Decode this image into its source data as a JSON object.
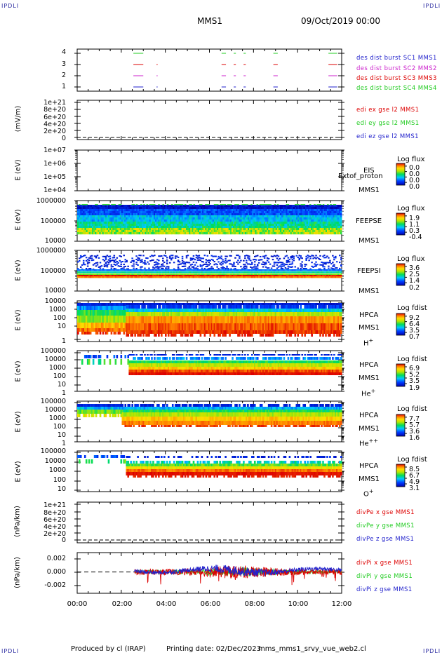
{
  "header": {
    "corner_label": "IPDLI",
    "spacecraft": "MMS1",
    "datetime": "09/Oct/2019 00:00"
  },
  "footer": {
    "produced_by": "Produced by cl (IRAP)",
    "printing_date": "Printing date: 02/Dec/2023",
    "script": "mms_mms1_srvy_vue_web2.cl"
  },
  "x_axis": {
    "ticks": [
      "00:00",
      "02:00",
      "04:00",
      "06:00",
      "08:00",
      "10:00",
      "12:00"
    ]
  },
  "colors": {
    "black": "#000000",
    "red": "#dd0000",
    "green": "#22cc22",
    "magenta": "#cc22cc",
    "blue": "#2222cc"
  },
  "chart_data": [
    {
      "type": "line",
      "panel": "burst",
      "yticks": [
        "4",
        "3",
        "2",
        "1"
      ],
      "x_range_hours": [
        0,
        12
      ],
      "legend": [
        {
          "name": "des dist burst SC1 MMS1",
          "color": "#2222cc"
        },
        {
          "name": "des dist burst SC2 MMS2",
          "color": "#cc22cc"
        },
        {
          "name": "des dist burst SC3 MMS3",
          "color": "#dd0000"
        },
        {
          "name": "des dist burst SC4 MMS4",
          "color": "#22cc22"
        }
      ],
      "series": [
        {
          "level": 4,
          "color": "#22cc22",
          "intervals": [
            [
              2.55,
              3.0
            ],
            [
              6.55,
              6.75
            ],
            [
              7.1,
              7.2
            ],
            [
              7.55,
              7.65
            ],
            [
              8.9,
              9.1
            ],
            [
              11.4,
              11.8
            ]
          ]
        },
        {
          "level": 3,
          "color": "#dd0000",
          "intervals": [
            [
              2.55,
              3.0
            ],
            [
              3.6,
              3.65
            ],
            [
              6.55,
              6.75
            ],
            [
              7.1,
              7.2
            ],
            [
              7.55,
              7.65
            ],
            [
              8.9,
              9.1
            ],
            [
              11.4,
              11.8
            ]
          ]
        },
        {
          "level": 2,
          "color": "#cc22cc",
          "intervals": [
            [
              2.55,
              3.0
            ],
            [
              3.6,
              3.65
            ],
            [
              6.55,
              6.75
            ],
            [
              7.1,
              7.2
            ],
            [
              7.55,
              7.65
            ],
            [
              8.9,
              9.1
            ],
            [
              11.4,
              11.8
            ]
          ]
        },
        {
          "level": 1,
          "color": "#2222cc",
          "intervals": [
            [
              2.55,
              3.0
            ],
            [
              3.6,
              3.65
            ],
            [
              6.55,
              6.75
            ],
            [
              7.1,
              7.2
            ],
            [
              7.55,
              7.65
            ],
            [
              8.9,
              9.1
            ],
            [
              11.4,
              11.8
            ]
          ]
        }
      ]
    },
    {
      "type": "line",
      "panel": "edi",
      "ylabel": "(mV/m)",
      "yticks": [
        "1e+21",
        "8e+20",
        "6e+20",
        "4e+20",
        "2e+20",
        "0"
      ],
      "legend": [
        {
          "name": "edi ex gse l2 MMS1",
          "color": "#dd0000"
        },
        {
          "name": "edi ey gse l2 MMS1",
          "color": "#22cc22"
        },
        {
          "name": "edi ez gse l2 MMS1",
          "color": "#2222cc"
        }
      ]
    },
    {
      "type": "heatmap",
      "panel": "eis",
      "ylabel": "E (eV)",
      "yticks": [
        "1e+07",
        "1e+06",
        "1e+05",
        "1e+04"
      ],
      "instrument": [
        "EIS",
        "MMS1"
      ],
      "overlay_text": "Extof_proton",
      "colorbar": {
        "title": "Log flux",
        "values": [
          "0.0",
          "0.0",
          "0.0",
          "0.0"
        ]
      }
    },
    {
      "type": "heatmap",
      "panel": "feepse",
      "ylabel": "E (eV)",
      "yticks": [
        "1000000",
        "100000",
        "10000"
      ],
      "instrument": [
        "FEEPSE",
        "MMS1"
      ],
      "colorbar": {
        "title": "Log flux",
        "values": [
          "1.9",
          "1.1",
          "0.3",
          "-0.4"
        ]
      }
    },
    {
      "type": "heatmap",
      "panel": "feepsi",
      "ylabel": "E (eV)",
      "yticks": [
        "1000000",
        "100000",
        "10000"
      ],
      "instrument": [
        "FEEPSI",
        "MMS1"
      ],
      "colorbar": {
        "title": "Log flux",
        "values": [
          "3.6",
          "2.5",
          "1.4",
          "0.2"
        ]
      }
    },
    {
      "type": "heatmap",
      "panel": "hpca_h",
      "ylabel": "E (eV)",
      "yticks": [
        "10000",
        "1000",
        "100",
        "10",
        "1"
      ],
      "instrument": [
        "HPCA",
        "MMS1"
      ],
      "species": "H",
      "species_sup": "+",
      "colorbar": {
        "title": "Log fdist",
        "values": [
          "9.2",
          "6.4",
          "3.5",
          "0.7"
        ]
      }
    },
    {
      "type": "heatmap",
      "panel": "hpca_he",
      "ylabel": "E (eV)",
      "yticks": [
        "100000",
        "10000",
        "1000",
        "100",
        "10",
        "1"
      ],
      "instrument": [
        "HPCA",
        "MMS1"
      ],
      "species": "He",
      "species_sup": "+",
      "colorbar": {
        "title": "Log fdist",
        "values": [
          "6.9",
          "5.2",
          "3.5",
          "1.9"
        ]
      }
    },
    {
      "type": "heatmap",
      "panel": "hpca_hepp",
      "ylabel": "E (eV)",
      "yticks": [
        "100000",
        "10000",
        "1000",
        "100",
        "10",
        "1"
      ],
      "instrument": [
        "HPCA",
        "MMS1"
      ],
      "species": "He",
      "species_sup": "++",
      "colorbar": {
        "title": "Log fdist",
        "values": [
          "7.7",
          "5.7",
          "3.6",
          "1.6"
        ]
      }
    },
    {
      "type": "heatmap",
      "panel": "hpca_o",
      "ylabel": "E (eV)",
      "yticks": [
        "100000",
        "10000",
        "1000",
        "100",
        "10"
      ],
      "instrument": [
        "HPCA",
        "MMS1"
      ],
      "species": "O",
      "species_sup": "+",
      "colorbar": {
        "title": "Log fdist",
        "values": [
          "8.5",
          "6.7",
          "4.9",
          "3.1"
        ]
      }
    },
    {
      "type": "line",
      "panel": "divpe",
      "ylabel": "(nPa/km)",
      "yticks": [
        "1e+21",
        "8e+20",
        "6e+20",
        "4e+20",
        "2e+20",
        "0"
      ],
      "legend": [
        {
          "name": "divPe x gse MMS1",
          "color": "#dd0000"
        },
        {
          "name": "divPe y gse MMS1",
          "color": "#22cc22"
        },
        {
          "name": "divPe z gse MMS1",
          "color": "#2222cc"
        }
      ]
    },
    {
      "type": "line",
      "panel": "divpi",
      "ylabel": "(nPa/km)",
      "yticks": [
        "0.002",
        "0.000",
        "-0.002"
      ],
      "ylim": [
        -0.0032,
        0.0029
      ],
      "legend": [
        {
          "name": "divPi x gse MMS1",
          "color": "#dd0000"
        },
        {
          "name": "divPi y gse MMS1",
          "color": "#22cc22"
        },
        {
          "name": "divPi z gse MMS1",
          "color": "#2222cc"
        }
      ],
      "data_start_hours": 2.6
    }
  ]
}
